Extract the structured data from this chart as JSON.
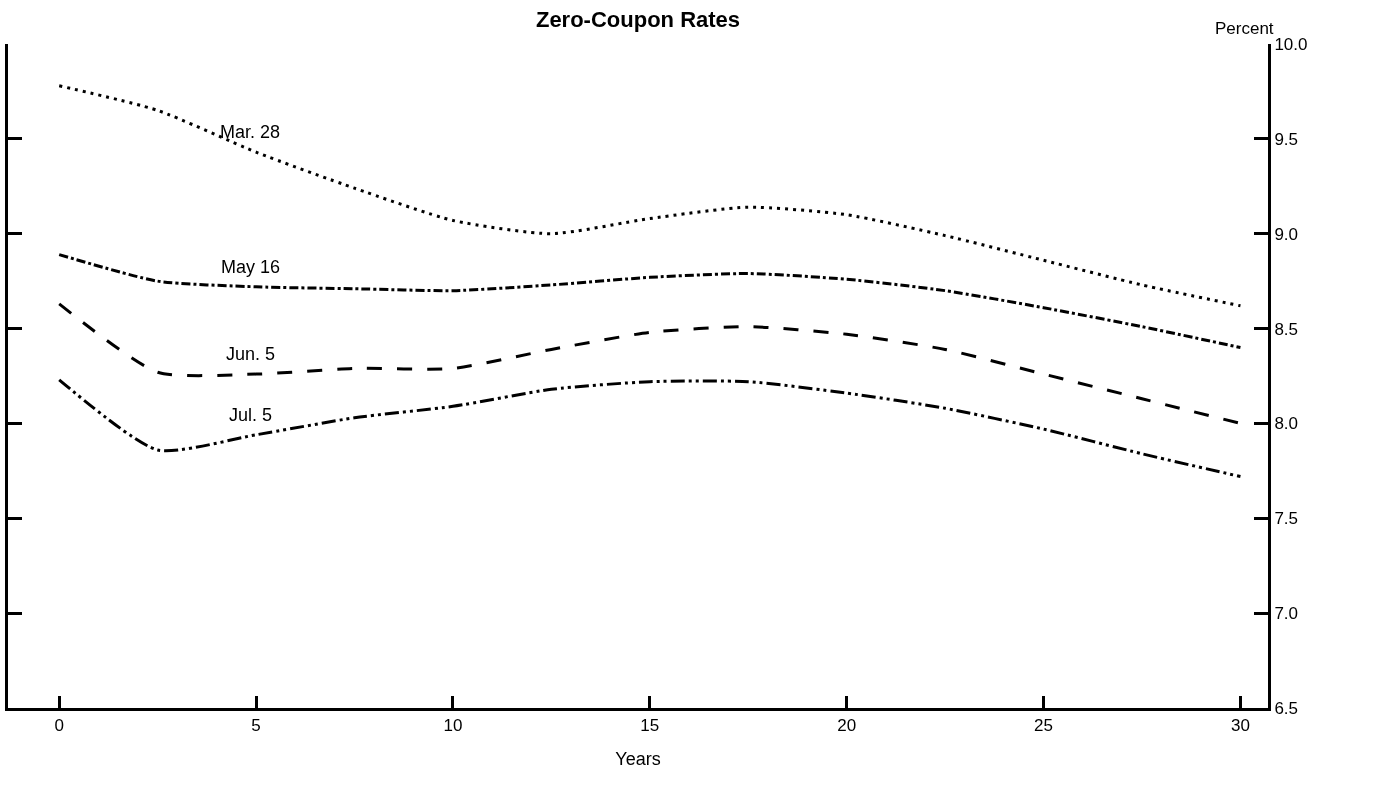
{
  "chart_data": {
    "type": "line",
    "title": "Zero-Coupon Rates",
    "xlabel": "Years",
    "ylabel": "Percent",
    "x": [
      0,
      2.5,
      5,
      7.5,
      10,
      12.5,
      15,
      17.5,
      20,
      22.5,
      25,
      27.5,
      30
    ],
    "series": [
      {
        "name": "Mar. 28",
        "color": "#000000",
        "line_style": "dotted",
        "values": [
          9.78,
          9.65,
          9.43,
          9.24,
          9.07,
          9.0,
          9.08,
          9.14,
          9.1,
          8.99,
          8.86,
          8.73,
          8.62
        ]
      },
      {
        "name": "May 16",
        "color": "#000000",
        "line_style": "dashdot",
        "values": [
          8.89,
          8.75,
          8.72,
          8.71,
          8.7,
          8.73,
          8.77,
          8.79,
          8.76,
          8.7,
          8.61,
          8.51,
          8.4
        ]
      },
      {
        "name": "Jun. 5",
        "color": "#000000",
        "line_style": "dashed",
        "values": [
          8.63,
          8.27,
          8.26,
          8.29,
          8.29,
          8.39,
          8.48,
          8.51,
          8.47,
          8.39,
          8.26,
          8.13,
          8.0
        ]
      },
      {
        "name": "Jul. 5",
        "color": "#000000",
        "line_style": "dashdotdot",
        "values": [
          8.23,
          7.86,
          7.94,
          8.03,
          8.09,
          8.18,
          8.22,
          8.22,
          8.16,
          8.08,
          7.97,
          7.84,
          7.72
        ]
      }
    ],
    "xlim": [
      -1.3,
      30.7
    ],
    "xticks": [
      0,
      5,
      10,
      15,
      20,
      25,
      30
    ],
    "ylim": [
      6.5,
      10.0
    ],
    "yticks": [
      6.5,
      {
        "value": 7,
        "label": "7.0"
      },
      7.5,
      {
        "value": 8,
        "label": "8.0"
      },
      8.5,
      {
        "value": 9,
        "label": "9.0"
      },
      9.5,
      {
        "value": 10,
        "label": "10.0"
      }
    ],
    "grid": false,
    "legend": false,
    "marker": "none"
  }
}
